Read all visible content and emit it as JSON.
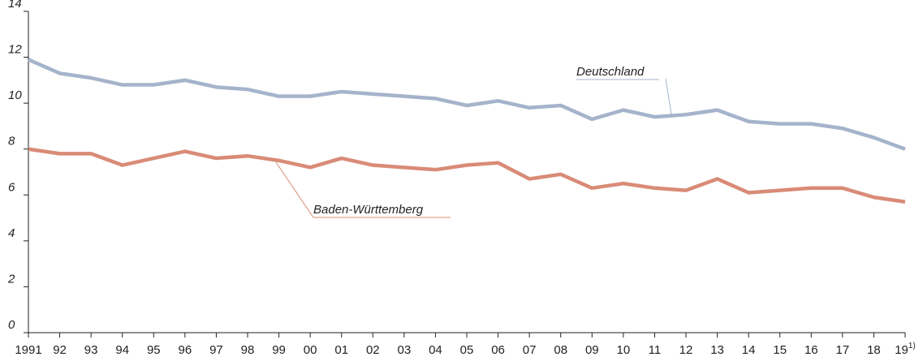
{
  "chart_data": {
    "type": "line",
    "categories": [
      "1991",
      "92",
      "93",
      "94",
      "95",
      "96",
      "97",
      "98",
      "99",
      "00",
      "01",
      "02",
      "03",
      "04",
      "05",
      "06",
      "07",
      "08",
      "09",
      "10",
      "11",
      "12",
      "13",
      "14",
      "15",
      "16",
      "17",
      "18",
      "19"
    ],
    "footnote_marker": "1)",
    "series": [
      {
        "name": "Deutschland",
        "color": "#a5b3cc",
        "values": [
          11.9,
          11.3,
          11.1,
          10.8,
          10.8,
          11.0,
          10.7,
          10.6,
          10.3,
          10.3,
          10.5,
          10.4,
          10.3,
          10.2,
          9.9,
          10.1,
          9.8,
          9.9,
          9.3,
          9.7,
          9.4,
          9.5,
          9.7,
          9.2,
          9.1,
          9.1,
          8.9,
          8.5,
          8.0
        ]
      },
      {
        "name": "Baden-Württemberg",
        "color": "#d98b77",
        "values": [
          8.0,
          7.8,
          7.8,
          7.3,
          7.6,
          7.9,
          7.6,
          7.7,
          7.5,
          7.2,
          7.6,
          7.3,
          7.2,
          7.1,
          7.3,
          7.4,
          6.7,
          6.9,
          6.3,
          6.5,
          6.3,
          6.2,
          6.7,
          6.1,
          6.2,
          6.3,
          6.3,
          5.9,
          5.7
        ]
      }
    ],
    "ylim": [
      0,
      14
    ],
    "yticks": [
      0,
      2,
      4,
      6,
      8,
      10,
      12,
      14
    ]
  }
}
